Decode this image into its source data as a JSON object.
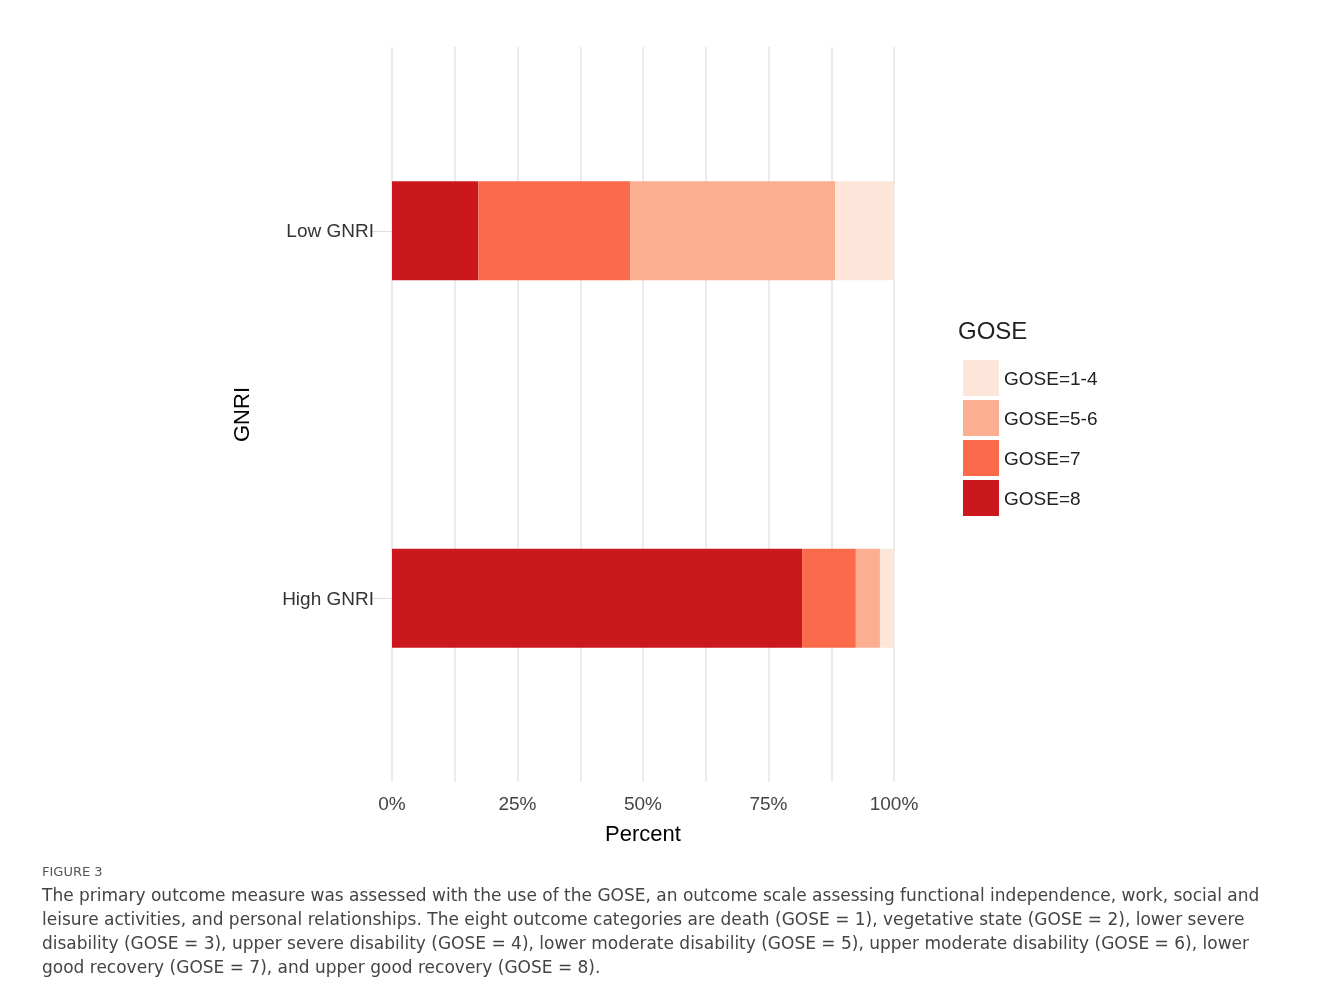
{
  "chart_data": {
    "type": "bar",
    "orientation": "horizontal",
    "stacked": true,
    "categories": [
      "Low GNRI",
      "High GNRI"
    ],
    "series": [
      {
        "name": "GOSE=8",
        "color": "#cb181d",
        "values": [
          17.2,
          81.7
        ]
      },
      {
        "name": "GOSE=7",
        "color": "#fb6a4a",
        "values": [
          30.3,
          10.7
        ]
      },
      {
        "name": "GOSE=5-6",
        "color": "#fcae91",
        "values": [
          40.8,
          4.8
        ]
      },
      {
        "name": "GOSE=1-4",
        "color": "#fee5d9",
        "values": [
          11.7,
          2.8
        ]
      }
    ],
    "xlim": [
      0,
      100
    ],
    "xticks": [
      {
        "value": 0,
        "label": "0%"
      },
      {
        "value": 12.5,
        "label": null
      },
      {
        "value": 25,
        "label": "25%"
      },
      {
        "value": 37.5,
        "label": null
      },
      {
        "value": 50,
        "label": "50%"
      },
      {
        "value": 62.5,
        "label": null
      },
      {
        "value": 75,
        "label": "75%"
      },
      {
        "value": 87.5,
        "label": null
      },
      {
        "value": 100,
        "label": "100%"
      }
    ],
    "xlabel": "Percent",
    "ylabel": "GNRI",
    "legend_title": "GOSE",
    "legend": "right",
    "grid": "x",
    "annotations": [
      "FIGURE 3",
      "The primary outcome measure was assessed with the use of the GOSE, an outcome scale assessing functional independence, work, social and leisure activities, and personal relationships. The eight outcome categories are death (GOSE = 1), vegetative state (GOSE = 2), lower severe disability (GOSE = 3), upper severe disability (GOSE = 4), lower moderate disability (GOSE = 5), upper moderate disability (GOSE = 6), lower good recovery (GOSE = 7), and upper good recovery (GOSE = 8)."
    ]
  }
}
